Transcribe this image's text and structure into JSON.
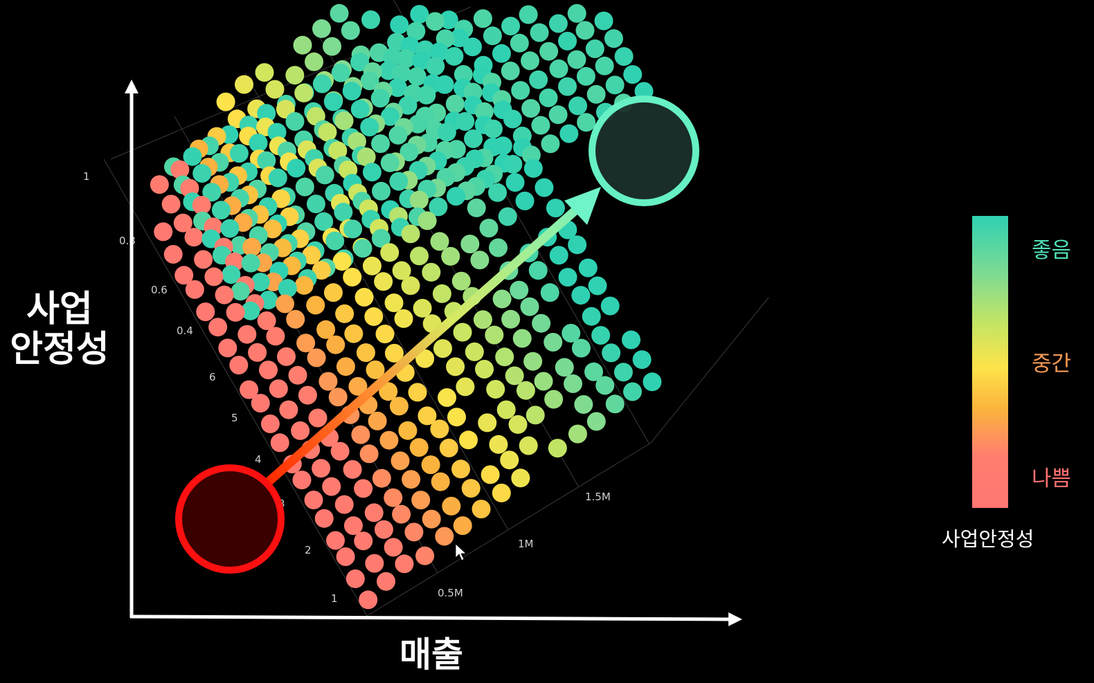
{
  "labels": {
    "y_axis": "사업\n안정성",
    "x_axis": "매출"
  },
  "legend": {
    "good": "좋음",
    "mid": "중간",
    "bad": "나쁨",
    "title": "사업안정성"
  },
  "colors": {
    "good": "#2fd1b2",
    "mid": "#fde34a",
    "bad": "#ff7672",
    "low_circle": "#ff1010",
    "high_circle": "#66f0c4"
  },
  "chart_data": {
    "type": "scatter",
    "projection": "3d",
    "x_ticks": [
      "0.5M",
      "1M",
      "1.5M"
    ],
    "depth_ticks": [
      "1",
      "2",
      "3",
      "4",
      "5",
      "6"
    ],
    "z_ticks": [
      "0.4",
      "0.6",
      "0.8",
      "1"
    ],
    "x_range": [
      0,
      2000000
    ],
    "depth_range": [
      1,
      16
    ],
    "z_range": [
      0.2,
      1
    ],
    "grid": "columns: 16, rows: 22",
    "colorscale": [
      "좋음",
      "중간",
      "나쁨"
    ],
    "annotations": [
      {
        "type": "circle",
        "meaning": "low",
        "color": "#ff1010"
      },
      {
        "type": "circle",
        "meaning": "high",
        "color": "#66f0c4"
      },
      {
        "type": "arrow",
        "from": "low",
        "to": "high"
      }
    ]
  }
}
